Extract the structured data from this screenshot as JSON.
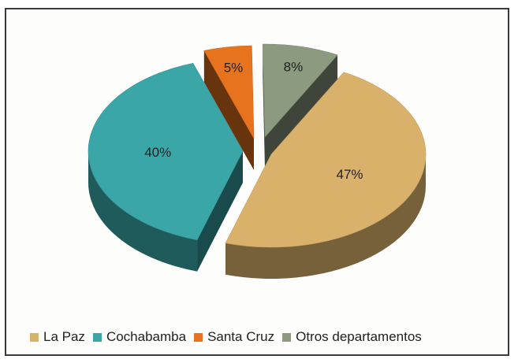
{
  "chart_data": {
    "type": "pie",
    "style": "3d-exploded",
    "title": "",
    "categories": [
      "La Paz",
      "Cochabamba",
      "Santa Cruz",
      "Otros departamentos"
    ],
    "values": [
      47,
      40,
      5,
      8
    ],
    "data_labels": [
      "47%",
      "40%",
      "5%",
      "8%"
    ],
    "colors": [
      "#d9b16b",
      "#3aa6a8",
      "#e8731e",
      "#8c9a80"
    ],
    "legend_position": "bottom"
  },
  "legend": {
    "items": [
      {
        "label": "La Paz",
        "color": "#d9b16b"
      },
      {
        "label": "Cochabamba",
        "color": "#3aa6a8"
      },
      {
        "label": "Santa Cruz",
        "color": "#e8731e"
      },
      {
        "label": "Otros departamentos",
        "color": "#8c9a80"
      }
    ]
  }
}
